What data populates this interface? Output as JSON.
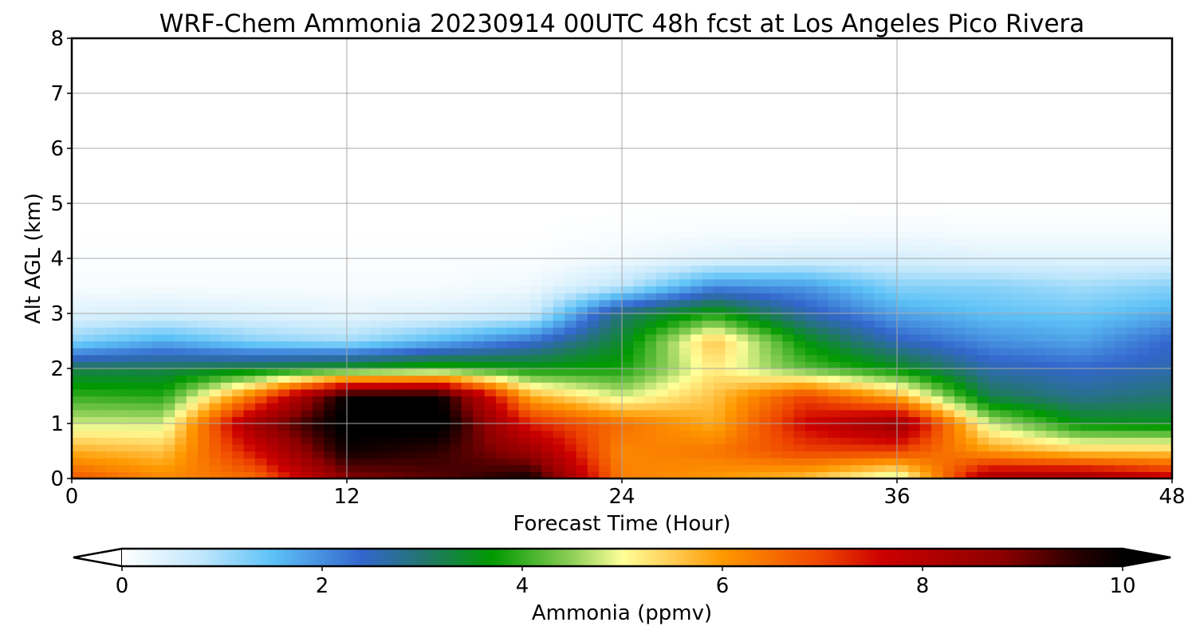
{
  "chart_data": {
    "type": "heatmap",
    "title": "WRF-Chem Ammonia  20230914 00UTC 48h fcst at Los Angeles Pico Rivera",
    "xlabel": "Forecast Time (Hour)",
    "ylabel": "Alt AGL (km)",
    "xlim": [
      0,
      48
    ],
    "ylim": [
      0,
      8
    ],
    "x_ticks": [
      0,
      12,
      24,
      36,
      48
    ],
    "y_ticks": [
      0,
      1,
      2,
      3,
      4,
      5,
      6,
      7,
      8
    ],
    "grid": true,
    "colorbar": {
      "label": "Ammonia  (ppmv)",
      "min": 0,
      "max": 10,
      "ticks": [
        0,
        2,
        4,
        6,
        8,
        10
      ],
      "extend": "both",
      "orientation": "horizontal",
      "stops": [
        {
          "value": 0,
          "color": "#ffffff"
        },
        {
          "value": 0.8,
          "color": "#bfe6fb"
        },
        {
          "value": 1.5,
          "color": "#5ec2f7"
        },
        {
          "value": 2.4,
          "color": "#3366cc"
        },
        {
          "value": 3.0,
          "color": "#23756f"
        },
        {
          "value": 3.7,
          "color": "#009900"
        },
        {
          "value": 4.5,
          "color": "#8fcf5a"
        },
        {
          "value": 5.0,
          "color": "#ffff99"
        },
        {
          "value": 5.5,
          "color": "#ffcc55"
        },
        {
          "value": 6.0,
          "color": "#ff9900"
        },
        {
          "value": 7.0,
          "color": "#ee4400"
        },
        {
          "value": 7.6,
          "color": "#cc0000"
        },
        {
          "value": 8.8,
          "color": "#8b0000"
        },
        {
          "value": 9.6,
          "color": "#220000"
        },
        {
          "value": 10,
          "color": "#000000"
        }
      ]
    },
    "x": [
      0,
      4,
      8,
      12,
      16,
      20,
      24,
      28,
      32,
      36,
      40,
      44,
      48
    ],
    "y": [
      0,
      0.5,
      1,
      1.5,
      2,
      2.5,
      3,
      3.5,
      4,
      4.5,
      5,
      6,
      7,
      8
    ],
    "z": [
      [
        6.8,
        6.2,
        6.5,
        8.8,
        9.2,
        9.8,
        6.3,
        6.0,
        5.6,
        4.6,
        8.3,
        8.5,
        7.8
      ],
      [
        5.8,
        5.6,
        7.5,
        9.8,
        9.5,
        8.5,
        6.2,
        6.4,
        7.0,
        7.0,
        6.0,
        5.5,
        5.5
      ],
      [
        4.8,
        4.8,
        8.5,
        10.2,
        10.2,
        7.3,
        6.5,
        5.8,
        7.6,
        8.6,
        4.8,
        3.6,
        3.5
      ],
      [
        4.0,
        3.9,
        6.5,
        10.0,
        10.0,
        5.8,
        4.8,
        5.6,
        7.0,
        5.8,
        3.2,
        2.8,
        3.0
      ],
      [
        3.2,
        3.2,
        3.4,
        3.7,
        4.0,
        3.7,
        3.8,
        5.2,
        4.2,
        3.6,
        2.6,
        2.4,
        2.6
      ],
      [
        1.2,
        1.7,
        1.2,
        1.0,
        1.6,
        2.3,
        3.4,
        5.6,
        3.6,
        2.5,
        2.0,
        1.8,
        2.4
      ],
      [
        0.4,
        0.5,
        0.4,
        0.3,
        0.4,
        0.6,
        3.0,
        3.8,
        2.6,
        1.8,
        1.5,
        1.4,
        1.7
      ],
      [
        0.1,
        0.1,
        0.1,
        0.1,
        0.1,
        0.2,
        0.8,
        2.0,
        1.9,
        1.2,
        1.2,
        1.0,
        1.2
      ],
      [
        0.05,
        0.05,
        0.05,
        0.05,
        0.05,
        0.05,
        0.2,
        0.4,
        0.5,
        0.5,
        0.4,
        0.4,
        0.4
      ],
      [
        0,
        0,
        0,
        0,
        0,
        0,
        0.05,
        0.1,
        0.1,
        0.15,
        0.1,
        0.1,
        0.1
      ],
      [
        0,
        0,
        0,
        0,
        0,
        0,
        0,
        0,
        0,
        0,
        0,
        0,
        0
      ],
      [
        0,
        0,
        0,
        0,
        0,
        0,
        0,
        0,
        0,
        0,
        0,
        0,
        0
      ],
      [
        0,
        0,
        0,
        0,
        0,
        0,
        0,
        0,
        0,
        0,
        0,
        0,
        0
      ],
      [
        0,
        0,
        0,
        0,
        0,
        0,
        0,
        0,
        0,
        0,
        0,
        0,
        0
      ]
    ]
  }
}
